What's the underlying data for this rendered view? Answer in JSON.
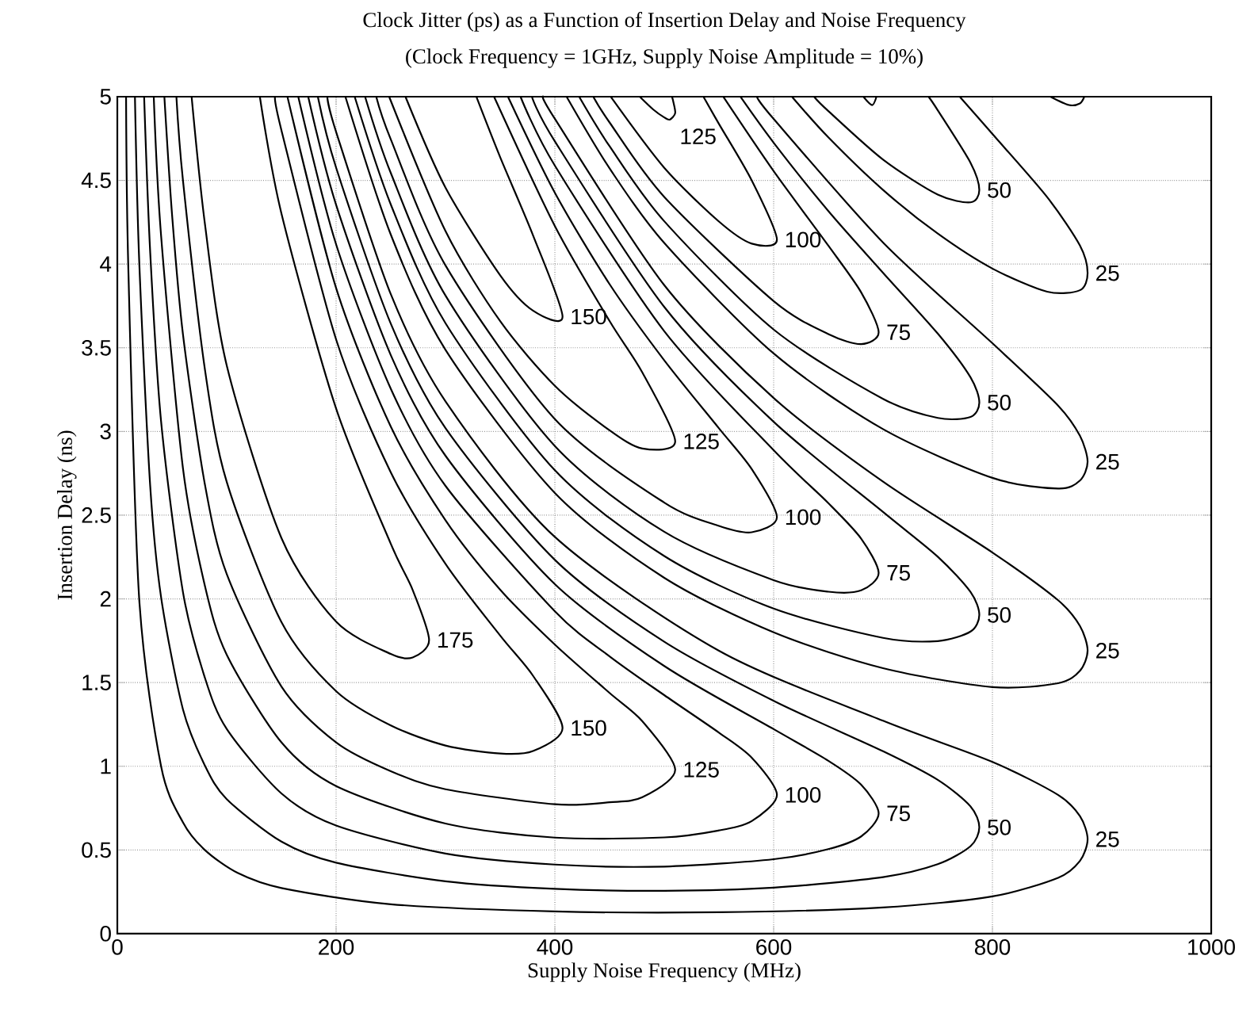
{
  "chart_data": {
    "type": "line",
    "title": "Clock Jitter (ps) as a Function of Insertion Delay and Noise Frequency",
    "subtitle": "(Clock Frequency = 1GHz, Supply Noise Amplitude = 10%)",
    "xlabel": "Supply Noise Frequency (MHz)",
    "ylabel": "Insertion Delay (ns)",
    "xlim": [
      0,
      1000
    ],
    "xticks": [
      0,
      200,
      400,
      600,
      800,
      1000
    ],
    "ylim": [
      0,
      5
    ],
    "yticks": [
      0,
      0.5,
      1,
      1.5,
      2,
      2.5,
      3,
      3.5,
      4,
      4.5,
      5
    ],
    "grid": true,
    "marker": "none",
    "line_style": "solid",
    "series": [
      {
        "color": "#000000",
        "x": [
          8,
          10,
          20,
          40,
          60,
          80,
          110,
          150,
          250,
          400,
          550,
          700,
          800,
          860,
          880,
          887,
          880,
          860,
          800,
          700,
          550,
          400,
          300,
          250,
          200,
          192
        ],
        "values": [
          5,
          3.99,
          2.0,
          1.0,
          0.665,
          0.5,
          0.363,
          0.273,
          0.176,
          0.133,
          0.128,
          0.157,
          0.223,
          0.334,
          0.435,
          0.564,
          0.702,
          0.829,
          1.026,
          1.272,
          1.69,
          2.37,
          3.18,
          3.82,
          4.79,
          5
        ]
      },
      {
        "color": "#000000",
        "x": [
          16.1,
          20,
          30,
          40,
          60,
          80,
          100,
          150,
          200,
          300,
          400,
          500,
          600,
          700,
          750,
          780,
          788,
          780,
          750,
          700,
          600,
          500,
          400,
          300,
          250,
          200,
          183.3
        ],
        "values": [
          5,
          4.02,
          2.68,
          2.01,
          1.34,
          1.005,
          0.804,
          0.55,
          0.424,
          0.313,
          0.268,
          0.256,
          0.275,
          0.338,
          0.415,
          0.523,
          0.635,
          0.76,
          0.919,
          1.09,
          1.391,
          1.744,
          2.233,
          3.02,
          3.644,
          4.576,
          5
        ]
      },
      {
        "color": "#000000",
        "x": [
          24.5,
          30,
          40,
          60,
          80,
          100,
          150,
          200,
          300,
          400,
          500,
          600,
          650,
          680,
          696,
          680,
          650,
          600,
          500,
          400,
          300,
          250,
          200,
          174.5
        ],
        "values": [
          5,
          4.077,
          3.06,
          2.04,
          1.53,
          1.223,
          0.838,
          0.646,
          0.479,
          0.413,
          0.401,
          0.445,
          0.505,
          0.581,
          0.718,
          0.89,
          1.033,
          1.222,
          1.599,
          2.088,
          2.855,
          3.456,
          4.354,
          5
        ]
      },
      {
        "color": "#000000",
        "x": [
          33.3,
          40,
          60,
          80,
          100,
          150,
          200,
          300,
          400,
          500,
          550,
          580,
          603,
          580,
          550,
          500,
          450,
          400,
          300,
          250,
          200,
          165.4
        ],
        "values": [
          5,
          4.17,
          2.78,
          2.08,
          1.667,
          1.143,
          0.882,
          0.658,
          0.574,
          0.575,
          0.617,
          0.673,
          0.829,
          1.051,
          1.201,
          1.425,
          1.657,
          1.926,
          2.675,
          3.255,
          4.118,
          5
        ]
      },
      {
        "color": "#000000",
        "x": [
          43,
          50,
          60,
          80,
          100,
          150,
          200,
          250,
          300,
          400,
          450,
          480,
          510,
          480,
          450,
          400,
          350,
          300,
          250,
          200,
          155.5
        ],
        "values": [
          5,
          4.298,
          3.58,
          2.686,
          2.149,
          1.477,
          1.143,
          0.971,
          0.863,
          0.773,
          0.785,
          0.815,
          0.98,
          1.269,
          1.438,
          1.727,
          2.055,
          2.47,
          3.029,
          3.857,
          5
        ]
      },
      {
        "color": "#000000",
        "x": [
          54,
          60,
          80,
          100,
          150,
          200,
          250,
          300,
          350,
          380,
          407,
          380,
          350,
          300,
          250,
          200,
          150,
          144.3
        ],
        "values": [
          5,
          4.5,
          3.374,
          2.699,
          1.862,
          1.449,
          1.244,
          1.124,
          1.076,
          1.091,
          1.229,
          1.541,
          1.781,
          2.209,
          2.756,
          3.55,
          4.8,
          5
        ]
      },
      {
        "color": "#000000",
        "x": [
          67.9,
          80,
          100,
          150,
          200,
          250,
          270,
          285,
          270,
          250,
          200,
          150,
          130.3
        ],
        "values": [
          5,
          4.244,
          3.395,
          2.364,
          1.864,
          1.671,
          1.65,
          1.754,
          2.053,
          2.329,
          3.137,
          4.303,
          5
        ]
      },
      {
        "color": "#000000",
        "x": [
          208.5,
          250,
          300,
          400,
          500,
          600,
          700,
          800,
          860,
          880,
          887,
          880,
          860,
          800,
          700,
          600,
          500,
          400,
          389.6
        ],
        "values": [
          5,
          4.176,
          3.488,
          2.633,
          2.126,
          1.8,
          1.586,
          1.473,
          1.496,
          1.571,
          1.691,
          1.838,
          1.992,
          2.277,
          2.7,
          3.2,
          3.874,
          4.868,
          5
        ]
      },
      {
        "color": "#000000",
        "x": [
          217,
          250,
          300,
          400,
          500,
          600,
          700,
          750,
          780,
          788,
          780,
          750,
          700,
          600,
          500,
          400,
          379
        ],
        "values": [
          5,
          4.356,
          3.647,
          2.768,
          2.256,
          1.942,
          1.767,
          1.748,
          1.805,
          1.904,
          2.041,
          2.252,
          2.519,
          3.058,
          3.744,
          4.733,
          5
        ]
      },
      {
        "color": "#000000",
        "x": [
          226.5,
          250,
          300,
          400,
          500,
          600,
          650,
          680,
          696,
          680,
          650,
          600,
          500,
          400,
          368.6
        ],
        "values": [
          5,
          4.544,
          3.812,
          2.913,
          2.401,
          2.112,
          2.043,
          2.051,
          2.155,
          2.36,
          2.572,
          2.888,
          3.599,
          4.588,
          5
        ]
      },
      {
        "color": "#000000",
        "x": [
          236.7,
          250,
          300,
          400,
          500,
          550,
          580,
          603,
          580,
          550,
          500,
          450,
          400,
          357.1
        ],
        "values": [
          5,
          4.745,
          3.992,
          3.074,
          2.575,
          2.436,
          2.398,
          2.488,
          2.775,
          3.019,
          3.425,
          3.88,
          4.426,
          5
        ]
      },
      {
        "color": "#000000",
        "x": [
          248.5,
          300,
          350,
          400,
          450,
          480,
          510,
          480,
          450,
          400,
          344.4
        ],
        "values": [
          5,
          4.197,
          3.659,
          3.273,
          3.007,
          2.898,
          2.941,
          3.352,
          3.66,
          4.227,
          5
        ]
      },
      {
        "color": "#000000",
        "x": [
          263.4,
          300,
          350,
          380,
          407,
          380,
          350,
          328.2
        ],
        "values": [
          5,
          4.457,
          3.933,
          3.722,
          3.686,
          4.172,
          4.638,
          5
        ]
      },
      {
        "color": "#000000",
        "x": [
          410.7,
          450,
          500,
          600,
          700,
          800,
          860,
          880,
          887,
          880,
          860,
          800,
          700,
          600,
          584.7
        ],
        "values": [
          5,
          4.572,
          4.126,
          3.466,
          3.014,
          2.723,
          2.659,
          2.707,
          2.819,
          2.974,
          3.155,
          3.527,
          4.129,
          4.867,
          5
        ]
      },
      {
        "color": "#000000",
        "x": [
          422.2,
          450,
          500,
          600,
          700,
          750,
          780,
          788,
          780,
          750,
          700,
          650,
          600,
          569.6
        ],
        "values": [
          5,
          4.704,
          4.256,
          3.609,
          3.195,
          3.081,
          3.087,
          3.173,
          3.323,
          3.585,
          3.948,
          4.317,
          4.725,
          5
        ]
      },
      {
        "color": "#000000",
        "x": [
          435.1,
          450,
          500,
          600,
          650,
          680,
          696,
          680,
          650,
          600,
          553.9
        ],
        "values": [
          5,
          4.846,
          4.401,
          3.779,
          3.582,
          3.522,
          3.592,
          3.831,
          4.11,
          4.555,
          5
        ]
      },
      {
        "color": "#000000",
        "x": [
          451,
          500,
          550,
          580,
          603,
          580,
          550,
          535.8
        ],
        "values": [
          5,
          4.575,
          4.254,
          4.122,
          4.146,
          4.499,
          4.837,
          5
        ]
      },
      {
        "color": "#000000",
        "x": [
          477.6,
          490,
          500,
          505,
          510,
          508,
          507
        ],
        "values": [
          5,
          4.923,
          4.876,
          4.863,
          4.902,
          4.977,
          5
        ]
      },
      {
        "color": "#000000",
        "x": [
          616.7,
          650,
          700,
          750,
          800,
          850,
          880,
          887,
          880,
          850,
          800,
          770.1
        ],
        "values": [
          5,
          4.757,
          4.443,
          4.182,
          3.973,
          3.835,
          3.844,
          3.946,
          4.111,
          4.4,
          4.777,
          5
        ]
      },
      {
        "color": "#000000",
        "x": [
          636.9,
          650,
          700,
          750,
          780,
          788,
          780,
          750,
          741.6
        ],
        "values": [
          5,
          4.914,
          4.624,
          4.415,
          4.369,
          4.442,
          4.605,
          4.919,
          5
        ]
      },
      {
        "color": "#000000",
        "x": [
          682,
          690,
          694
        ],
        "values": [
          5,
          4.95,
          5
        ]
      },
      {
        "color": "#000000",
        "x": [
          853,
          870,
          880,
          884
        ],
        "values": [
          5,
          4.95,
          4.96,
          5
        ]
      }
    ],
    "annotations": [
      {
        "text": "125",
        "x": 510,
        "y": 4.902
      },
      {
        "text": "100",
        "x": 603,
        "y": 4.146
      },
      {
        "text": "50",
        "x": 788,
        "y": 4.442
      },
      {
        "text": "25",
        "x": 887,
        "y": 3.946
      },
      {
        "text": "150",
        "x": 407,
        "y": 3.686
      },
      {
        "text": "75",
        "x": 696,
        "y": 3.592
      },
      {
        "text": "50",
        "x": 788,
        "y": 3.173
      },
      {
        "text": "125",
        "x": 510,
        "y": 2.941
      },
      {
        "text": "25",
        "x": 887,
        "y": 2.819
      },
      {
        "text": "100",
        "x": 603,
        "y": 2.488
      },
      {
        "text": "75",
        "x": 696,
        "y": 2.155
      },
      {
        "text": "50",
        "x": 788,
        "y": 1.904
      },
      {
        "text": "25",
        "x": 887,
        "y": 1.691
      },
      {
        "text": "175",
        "x": 285,
        "y": 1.754
      },
      {
        "text": "150",
        "x": 407,
        "y": 1.229
      },
      {
        "text": "125",
        "x": 510,
        "y": 0.98
      },
      {
        "text": "100",
        "x": 603,
        "y": 0.829
      },
      {
        "text": "75",
        "x": 696,
        "y": 0.718
      },
      {
        "text": "50",
        "x": 788,
        "y": 0.635
      },
      {
        "text": "25",
        "x": 887,
        "y": 0.564
      }
    ]
  }
}
